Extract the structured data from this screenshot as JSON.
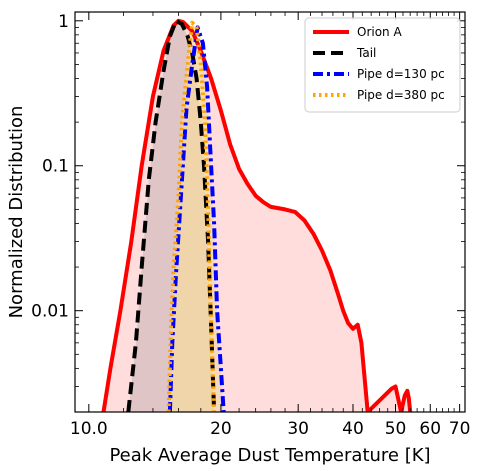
{
  "chart_data": {
    "type": "area",
    "xlabel": "Peak Average Dust Temperature [K]",
    "ylabel": "Normalized Distribution",
    "x_scale": "log",
    "y_scale": "log",
    "xlim": [
      9.3,
      72
    ],
    "ylim": [
      0.002,
      1.15
    ],
    "x_ticks": [
      {
        "value": 10,
        "label": "10.0"
      },
      {
        "value": 20,
        "label": "20"
      },
      {
        "value": 30,
        "label": "30"
      },
      {
        "value": 40,
        "label": "40"
      },
      {
        "value": 50,
        "label": "50"
      },
      {
        "value": 60,
        "label": "60"
      },
      {
        "value": 70,
        "label": "70"
      }
    ],
    "y_ticks": [
      {
        "value": 1,
        "label": "1"
      },
      {
        "value": 0.1,
        "label": "0.1"
      },
      {
        "value": 0.01,
        "label": "0.01"
      }
    ],
    "legend_position": "top-right",
    "series": [
      {
        "name": "Orion A",
        "color": "#ff0000",
        "fill": "#ffb3b3",
        "style": "solid",
        "x": [
          10.8,
          11.2,
          11.8,
          12.5,
          13.2,
          14.0,
          14.8,
          15.6,
          16.0,
          16.4,
          17.2,
          18.0,
          19.0,
          20.0,
          21.0,
          22.0,
          23.0,
          24.0,
          25.0,
          26.0,
          27.0,
          28.0,
          29.5,
          31.0,
          32.5,
          34.0,
          35.5,
          37.0,
          38.0,
          39.0,
          40.0,
          41.0,
          41.8,
          42.5,
          43.2,
          49.0,
          50.0,
          51.5,
          52.5,
          53.2,
          53.6,
          54.0
        ],
        "y": [
          0.002,
          0.004,
          0.01,
          0.03,
          0.1,
          0.3,
          0.62,
          0.93,
          1.0,
          0.98,
          0.85,
          0.62,
          0.4,
          0.24,
          0.14,
          0.095,
          0.075,
          0.062,
          0.056,
          0.052,
          0.051,
          0.05,
          0.048,
          0.042,
          0.034,
          0.026,
          0.019,
          0.013,
          0.01,
          0.0082,
          0.0075,
          0.008,
          0.006,
          0.0035,
          0.002,
          0.0029,
          0.003,
          0.002,
          0.0026,
          0.0028,
          0.0025,
          0.002
        ]
      },
      {
        "name": "Tail",
        "color": "#000000",
        "fill": "#b8a8a8",
        "style": "dashed",
        "x": [
          12.3,
          12.8,
          13.2,
          13.7,
          14.2,
          14.8,
          15.3,
          15.8,
          16.3,
          16.8,
          17.2,
          17.6,
          18.0,
          18.3,
          18.7,
          19.0,
          19.3
        ],
        "y": [
          0.002,
          0.006,
          0.02,
          0.08,
          0.2,
          0.45,
          0.78,
          1.0,
          0.95,
          0.78,
          0.6,
          0.4,
          0.2,
          0.1,
          0.03,
          0.008,
          0.002
        ]
      },
      {
        "name": "Pipe d=130 pc",
        "color": "#0000ff",
        "fill": "#e8d8a0",
        "style": "dashdot",
        "x": [
          15.3,
          15.5,
          15.8,
          16.2,
          16.7,
          17.2,
          17.7,
          18.2,
          18.6,
          19.0,
          19.3,
          19.6,
          20.0,
          20.3
        ],
        "y": [
          0.002,
          0.006,
          0.018,
          0.06,
          0.25,
          0.5,
          0.9,
          0.7,
          0.35,
          0.1,
          0.04,
          0.01,
          0.004,
          0.002
        ]
      },
      {
        "name": "Pipe d=380 pc",
        "color": "#ffa500",
        "fill": "#ffe0a0",
        "style": "dotted",
        "x": [
          15.2,
          15.4,
          15.6,
          16.0,
          16.3,
          16.8,
          17.2,
          17.6,
          18.0,
          18.4,
          18.7,
          19.0,
          19.3
        ],
        "y": [
          0.002,
          0.008,
          0.02,
          0.06,
          0.2,
          0.5,
          0.97,
          0.9,
          0.5,
          0.2,
          0.05,
          0.008,
          0.002
        ]
      }
    ]
  }
}
